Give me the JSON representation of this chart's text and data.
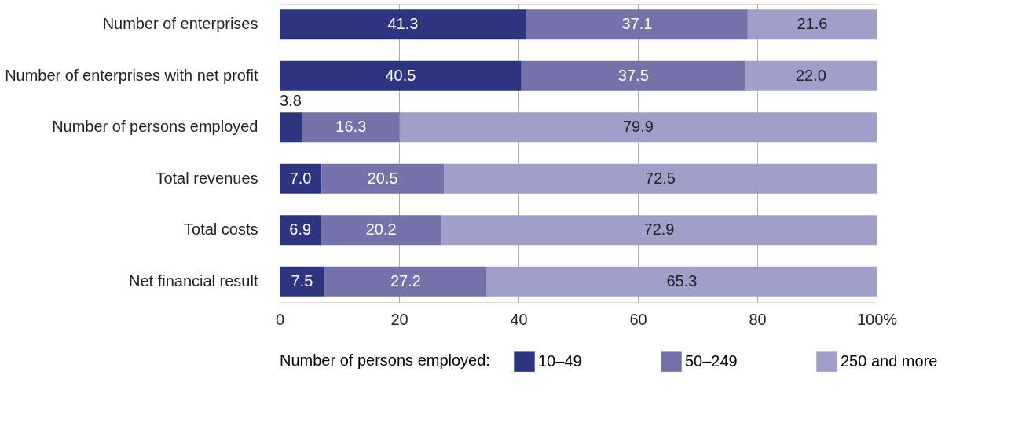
{
  "chart_data": {
    "type": "bar",
    "orientation": "horizontal",
    "stacked": true,
    "categories": [
      "Number of enterprises",
      "Number of enterprises with net profit",
      "Number of persons employed",
      "Total revenues",
      "Total costs",
      "Net financial result"
    ],
    "series": [
      {
        "name": "10–49",
        "color": "#2e3580",
        "values": [
          41.3,
          40.5,
          3.8,
          7.0,
          6.9,
          7.5
        ],
        "value_labels": [
          "41.3",
          "40.5",
          "3.8",
          "7.0",
          "6.9",
          "7.5"
        ]
      },
      {
        "name": "50–249",
        "color": "#7472a8",
        "values": [
          37.1,
          37.5,
          16.3,
          20.5,
          20.2,
          27.2
        ],
        "value_labels": [
          "37.1",
          "37.5",
          "16.3",
          "20.5",
          "20.2",
          "27.2"
        ]
      },
      {
        "name": "250 and more",
        "color": "#a09fca",
        "values": [
          21.6,
          22.0,
          79.9,
          72.5,
          72.9,
          65.3
        ],
        "value_labels": [
          "21.6",
          "22.0",
          "79.9",
          "72.5",
          "72.9",
          "65.3"
        ]
      }
    ],
    "xlim": [
      0,
      100
    ],
    "xticks": [
      0,
      20,
      40,
      60,
      80,
      {
        "value": 100,
        "label": "100%"
      }
    ],
    "grid": "x",
    "legend": "bottom",
    "legend_title": "Number of persons employed:"
  }
}
